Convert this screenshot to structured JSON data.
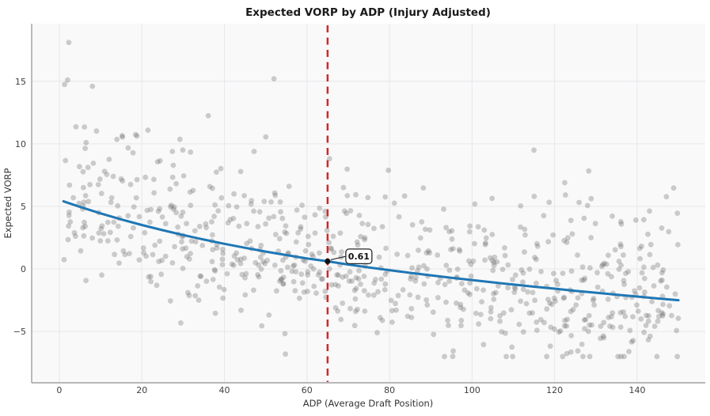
{
  "title": "Expected VORP by ADP (Injury Adjusted)",
  "chart_data": {
    "type": "scatter",
    "title": "Expected VORP by ADP (Injury Adjusted)",
    "xlabel": "ADP (Average Draft Position)",
    "ylabel": "Expected VORP",
    "xlim": [
      -6.7,
      156.5
    ],
    "ylim": [
      -9.1,
      19.6
    ],
    "x_ticks": [
      0,
      20,
      40,
      60,
      80,
      100,
      120,
      140
    ],
    "y_ticks": [
      -5,
      0,
      5,
      10,
      15
    ],
    "grid": true,
    "legend": "none",
    "colors": {
      "plot_bg": "#f9f9fa",
      "grid": "#e8e8ea",
      "spine": "#8f8f8f",
      "scatter": "#666666",
      "trend": "#1f77b4",
      "vline": "#d02828",
      "annotation_border": "#262626",
      "annotation_bg": "#ffffff"
    },
    "scatter": {
      "name": "player-points",
      "opacity": 0.32,
      "radius": 3.4,
      "n": 740,
      "seed": 77,
      "noise_sd_low": 2.9,
      "noise_sd_high": 3.6,
      "x_range": [
        1,
        150
      ],
      "y_clip": [
        -7.0,
        18.3
      ],
      "fixed_points": [
        [
          2.3,
          18.1
        ],
        [
          2.0,
          15.1
        ],
        [
          8,
          14.6
        ],
        [
          52,
          15.2
        ],
        [
          115,
          9.5
        ]
      ]
    },
    "trend": {
      "name": "expected-vorp-curve",
      "width": 3,
      "points": [
        [
          1,
          5.4
        ],
        [
          5,
          4.96
        ],
        [
          10,
          4.44
        ],
        [
          15,
          3.96
        ],
        [
          20,
          3.51
        ],
        [
          25,
          3.1
        ],
        [
          30,
          2.71
        ],
        [
          35,
          2.35
        ],
        [
          40,
          2.01
        ],
        [
          45,
          1.69
        ],
        [
          50,
          1.39
        ],
        [
          55,
          1.11
        ],
        [
          60,
          0.84
        ],
        [
          65,
          0.61
        ],
        [
          70,
          0.35
        ],
        [
          75,
          0.12
        ],
        [
          80,
          -0.1
        ],
        [
          85,
          -0.31
        ],
        [
          90,
          -0.51
        ],
        [
          95,
          -0.71
        ],
        [
          100,
          -0.89
        ],
        [
          105,
          -1.07
        ],
        [
          110,
          -1.25
        ],
        [
          115,
          -1.42
        ],
        [
          120,
          -1.58
        ],
        [
          125,
          -1.75
        ],
        [
          130,
          -1.9
        ],
        [
          135,
          -2.06
        ],
        [
          140,
          -2.21
        ],
        [
          145,
          -2.36
        ],
        [
          150,
          -2.5
        ]
      ]
    },
    "vline": {
      "name": "draft-cutoff",
      "x": 65,
      "width": 2.5,
      "dash": [
        9,
        6.5
      ]
    },
    "annotation": {
      "label": "0.61",
      "point": [
        65,
        0.61
      ]
    }
  }
}
